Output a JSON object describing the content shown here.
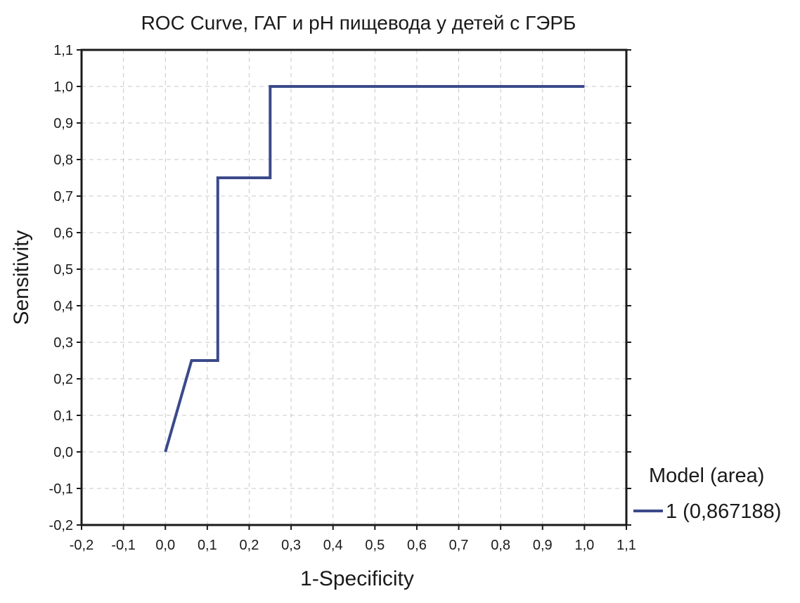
{
  "chart_data": {
    "type": "line",
    "title": "ROC Curve, ГАГ и  pH пищевода у детей с ГЭРБ",
    "xlabel": "1-Specificity",
    "ylabel": "Sensitivity",
    "xlim": [
      -0.2,
      1.1
    ],
    "ylim": [
      -0.2,
      1.1
    ],
    "x_ticks": [
      "-0,2",
      "-0,1",
      "0,0",
      "0,1",
      "0,2",
      "0,3",
      "0,4",
      "0,5",
      "0,6",
      "0,7",
      "0,8",
      "0,9",
      "1,0",
      "1,1"
    ],
    "y_ticks": [
      "-0,2",
      "-0,1",
      "0,0",
      "0,1",
      "0,2",
      "0,3",
      "0,4",
      "0,5",
      "0,6",
      "0,7",
      "0,8",
      "0,9",
      "1,0",
      "1,1"
    ],
    "grid": true,
    "legend_title": "Model (area)",
    "legend_position": "bottom-right outside",
    "series": [
      {
        "name": "1 (0,867188)",
        "color": "#3b4a8a",
        "x": [
          0.0,
          0.0625,
          0.125,
          0.125,
          0.25,
          0.25,
          1.0
        ],
        "y": [
          0.0,
          0.25,
          0.25,
          0.75,
          0.75,
          1.0,
          1.0
        ]
      }
    ]
  }
}
